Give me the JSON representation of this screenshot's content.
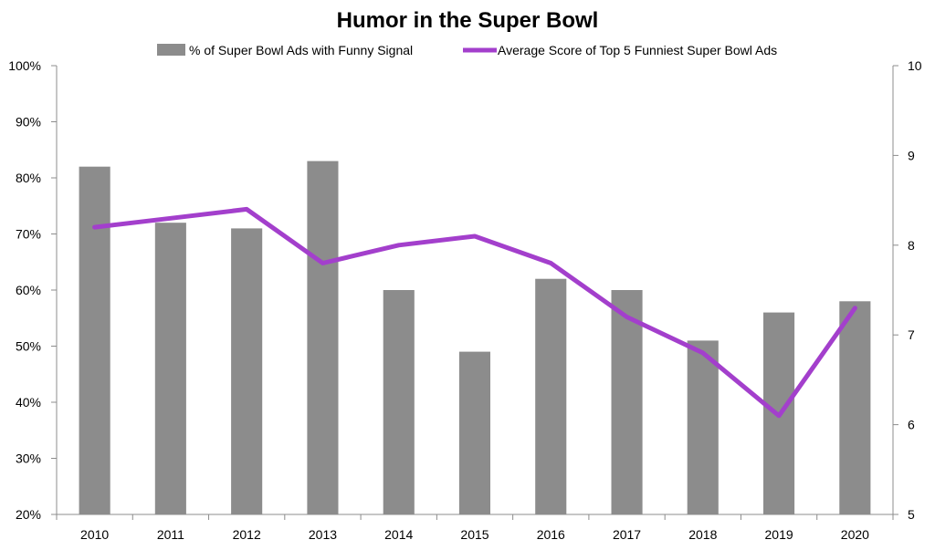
{
  "chart_data": {
    "type": "bar+line",
    "title": "Humor in the Super Bowl",
    "categories": [
      "2010",
      "2011",
      "2012",
      "2013",
      "2014",
      "2015",
      "2016",
      "2017",
      "2018",
      "2019",
      "2020"
    ],
    "series": [
      {
        "name": "% of Super Bowl Ads with Funny Signal",
        "type": "bar",
        "axis": "left",
        "color": "#8c8c8c",
        "values": [
          82,
          72,
          71,
          83,
          60,
          49,
          62,
          60,
          51,
          56,
          58
        ]
      },
      {
        "name": "Average Score of Top 5 Funniest Super Bowl Ads",
        "type": "line",
        "axis": "right",
        "color": "#a33fcc",
        "values": [
          8.2,
          8.3,
          8.4,
          7.8,
          8.0,
          8.1,
          7.8,
          7.2,
          6.8,
          6.1,
          7.3
        ]
      }
    ],
    "y_left": {
      "range": [
        20,
        100
      ],
      "ticks": [
        20,
        30,
        40,
        50,
        60,
        70,
        80,
        90,
        100
      ],
      "tick_labels": [
        "20%",
        "30%",
        "40%",
        "50%",
        "60%",
        "70%",
        "80%",
        "90%",
        "100%"
      ]
    },
    "y_right": {
      "range": [
        5,
        10
      ],
      "ticks": [
        5,
        6,
        7,
        8,
        9,
        10
      ],
      "tick_labels": [
        "5",
        "6",
        "7",
        "8",
        "9",
        "10"
      ]
    },
    "xlabel": "",
    "grid": false,
    "legend_position": "top-center"
  }
}
